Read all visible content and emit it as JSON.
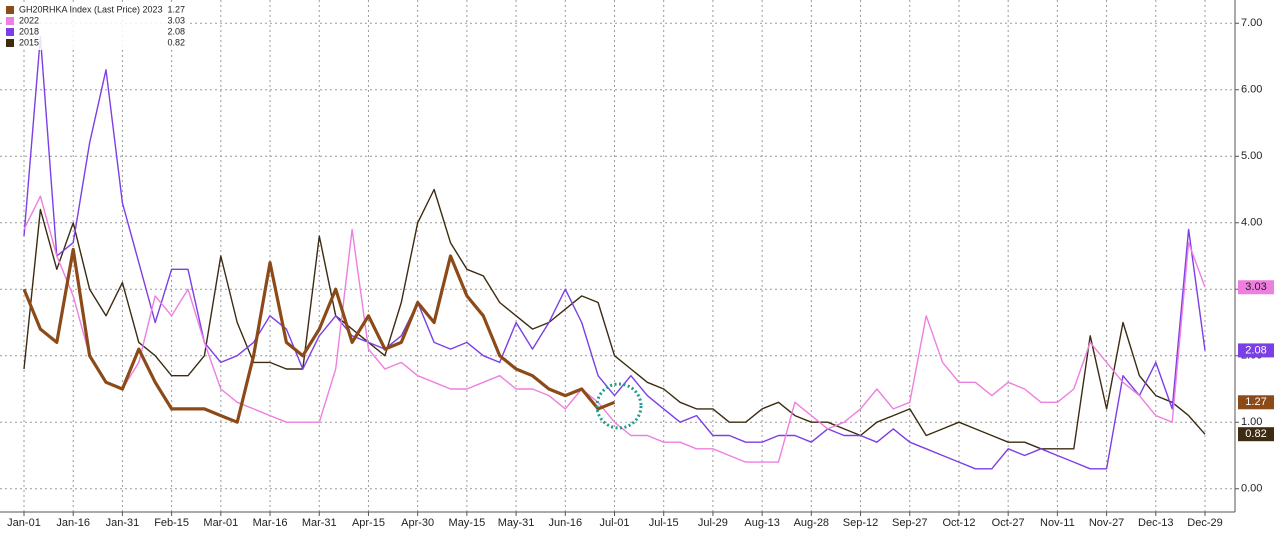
{
  "chart_data": {
    "type": "line",
    "categories": [
      "Jan-01",
      null,
      null,
      "Jan-16",
      null,
      null,
      "Jan-31",
      null,
      null,
      "Feb-15",
      null,
      null,
      "Mar-01",
      null,
      null,
      "Mar-16",
      null,
      null,
      "Mar-31",
      null,
      null,
      "Apr-15",
      null,
      null,
      "Apr-30",
      null,
      null,
      "May-15",
      null,
      null,
      "May-31",
      null,
      null,
      "Jun-16",
      null,
      null,
      "Jul-01",
      null,
      null,
      "Jul-15",
      null,
      null,
      "Jul-29",
      null,
      null,
      "Aug-13",
      null,
      null,
      "Aug-28",
      null,
      null,
      "Sep-12",
      null,
      null,
      "Sep-27",
      null,
      null,
      "Oct-12",
      null,
      null,
      "Oct-27",
      null,
      null,
      "Nov-11",
      null,
      null,
      "Nov-27",
      null,
      null,
      "Dec-13",
      null,
      null,
      "Dec-29"
    ],
    "series": [
      {
        "name": "GH20RHKA Index (Last Price) 2023",
        "last_label": "1.27",
        "color": "#8b4a17",
        "width": 3.2,
        "values": [
          3.0,
          2.4,
          2.2,
          3.6,
          2.0,
          1.6,
          1.5,
          2.1,
          1.6,
          1.2,
          1.2,
          1.2,
          1.1,
          1.0,
          2.0,
          3.4,
          2.2,
          2.0,
          2.4,
          3.0,
          2.2,
          2.6,
          2.1,
          2.2,
          2.8,
          2.5,
          3.5,
          2.9,
          2.6,
          2.0,
          1.8,
          1.7,
          1.5,
          1.4,
          1.5,
          1.2,
          1.3,
          null,
          null,
          null,
          null,
          null,
          null,
          null,
          null,
          null,
          null,
          null,
          null,
          null,
          null,
          null,
          null,
          null,
          null,
          null,
          null,
          null,
          null,
          null,
          null,
          null,
          null,
          null,
          null,
          null,
          null,
          null,
          null,
          null,
          null,
          null,
          null
        ]
      },
      {
        "name": "2022",
        "last_label": "3.03",
        "color": "#ee7fe0",
        "width": 1.4,
        "values": [
          3.9,
          4.4,
          3.5,
          2.9,
          2.0,
          1.6,
          1.5,
          1.9,
          2.9,
          2.6,
          3.0,
          2.2,
          1.5,
          1.3,
          1.2,
          1.1,
          1.0,
          1.0,
          1.0,
          1.8,
          3.9,
          2.1,
          1.8,
          1.9,
          1.7,
          1.6,
          1.5,
          1.5,
          1.6,
          1.7,
          1.5,
          1.5,
          1.4,
          1.2,
          1.5,
          1.3,
          1.0,
          0.8,
          0.8,
          0.7,
          0.7,
          0.6,
          0.6,
          0.5,
          0.4,
          0.4,
          0.4,
          1.3,
          1.1,
          0.9,
          1.0,
          1.2,
          1.5,
          1.2,
          1.3,
          2.6,
          1.9,
          1.6,
          1.6,
          1.4,
          1.6,
          1.5,
          1.3,
          1.3,
          1.5,
          2.2,
          1.9,
          1.6,
          1.4,
          1.1,
          1.0,
          3.7,
          3.03
        ]
      },
      {
        "name": "2018",
        "last_label": "2.08",
        "color": "#7b3fe6",
        "width": 1.4,
        "values": [
          3.8,
          6.8,
          3.5,
          3.7,
          5.2,
          6.3,
          4.3,
          3.4,
          2.5,
          3.3,
          3.3,
          2.2,
          1.9,
          2.0,
          2.2,
          2.6,
          2.4,
          1.8,
          2.3,
          2.6,
          2.3,
          2.2,
          2.1,
          2.3,
          2.8,
          2.2,
          2.1,
          2.2,
          2.0,
          1.9,
          2.5,
          2.1,
          2.5,
          3.0,
          2.5,
          1.7,
          1.4,
          1.7,
          1.4,
          1.2,
          1.0,
          1.1,
          0.8,
          0.8,
          0.7,
          0.7,
          0.8,
          0.8,
          0.7,
          0.9,
          0.8,
          0.8,
          0.7,
          0.9,
          0.7,
          0.6,
          0.5,
          0.4,
          0.3,
          0.3,
          0.6,
          0.5,
          0.6,
          0.5,
          0.4,
          0.3,
          0.3,
          1.7,
          1.4,
          1.9,
          1.2,
          3.9,
          2.08
        ]
      },
      {
        "name": "2015",
        "last_label": "0.82",
        "color": "#3d2b12",
        "width": 1.4,
        "values": [
          1.8,
          4.2,
          3.3,
          4.0,
          3.0,
          2.6,
          3.1,
          2.2,
          2.0,
          1.7,
          1.7,
          2.0,
          3.5,
          2.5,
          1.9,
          1.9,
          1.8,
          1.8,
          3.8,
          2.6,
          2.4,
          2.2,
          2.0,
          2.8,
          4.0,
          4.5,
          3.7,
          3.3,
          3.2,
          2.8,
          2.6,
          2.4,
          2.5,
          2.7,
          2.9,
          2.8,
          2.0,
          1.8,
          1.6,
          1.5,
          1.3,
          1.2,
          1.2,
          1.0,
          1.0,
          1.2,
          1.3,
          1.1,
          1.0,
          1.0,
          0.9,
          0.8,
          1.0,
          1.1,
          1.2,
          0.8,
          0.9,
          1.0,
          0.9,
          0.8,
          0.7,
          0.7,
          0.6,
          0.6,
          0.6,
          2.3,
          1.2,
          2.5,
          1.7,
          1.4,
          1.3,
          1.1,
          0.82
        ]
      }
    ],
    "ylim": [
      -0.35,
      7.35
    ],
    "yticks": [
      {
        "value": 0,
        "label": "0.00"
      },
      {
        "value": 1,
        "label": "1.00"
      },
      {
        "value": 2,
        "label": "2.00"
      },
      {
        "value": 3,
        "label": "3.00"
      },
      {
        "value": 4,
        "label": "4.00"
      },
      {
        "value": 5,
        "label": "5.00"
      },
      {
        "value": 6,
        "label": "6.00"
      },
      {
        "value": 7,
        "label": "7.00"
      }
    ],
    "grid": true,
    "legend": "top-left"
  }
}
